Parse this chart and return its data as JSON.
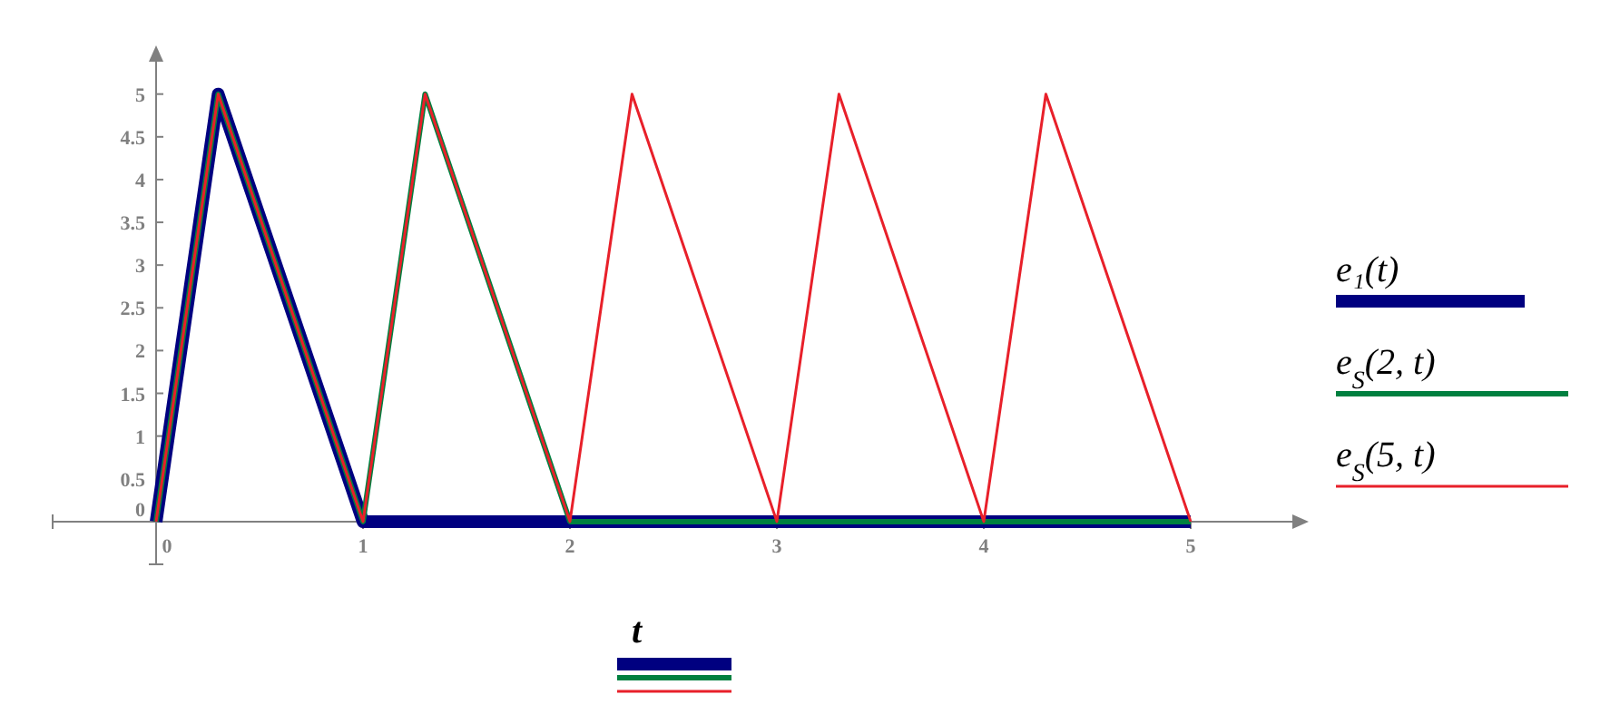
{
  "chart_data": {
    "type": "line",
    "xlabel": "t",
    "xlim": [
      -0.5,
      5.5
    ],
    "ylim": [
      -0.5,
      5.4
    ],
    "xticks": [
      0,
      1,
      2,
      3,
      4,
      5
    ],
    "yticks": [
      0,
      0.5,
      1,
      1.5,
      2,
      2.5,
      3,
      3.5,
      4,
      4.5,
      5
    ],
    "grid": false,
    "legend": "right",
    "marker": "none",
    "line_style": "solid",
    "series": [
      {
        "name": "e₁(t)",
        "color": "#000080",
        "x": [
          0,
          0.3,
          1,
          5
        ],
        "values": [
          0,
          5,
          0,
          0
        ]
      },
      {
        "name": "e$_{S}$(2, t)",
        "color": "#008040",
        "x": [
          0,
          0.3,
          1,
          1.3,
          2,
          5
        ],
        "values": [
          0,
          5,
          0,
          5,
          0,
          0
        ]
      },
      {
        "name": "e$_{S}$(5, t)",
        "color": "#e8202a",
        "x": [
          0,
          0.3,
          1,
          1.3,
          2,
          2.3,
          3,
          3.3,
          4,
          4.3,
          5
        ],
        "values": [
          0,
          5,
          0,
          5,
          0,
          5,
          0,
          5,
          0,
          5,
          0
        ]
      }
    ]
  }
}
